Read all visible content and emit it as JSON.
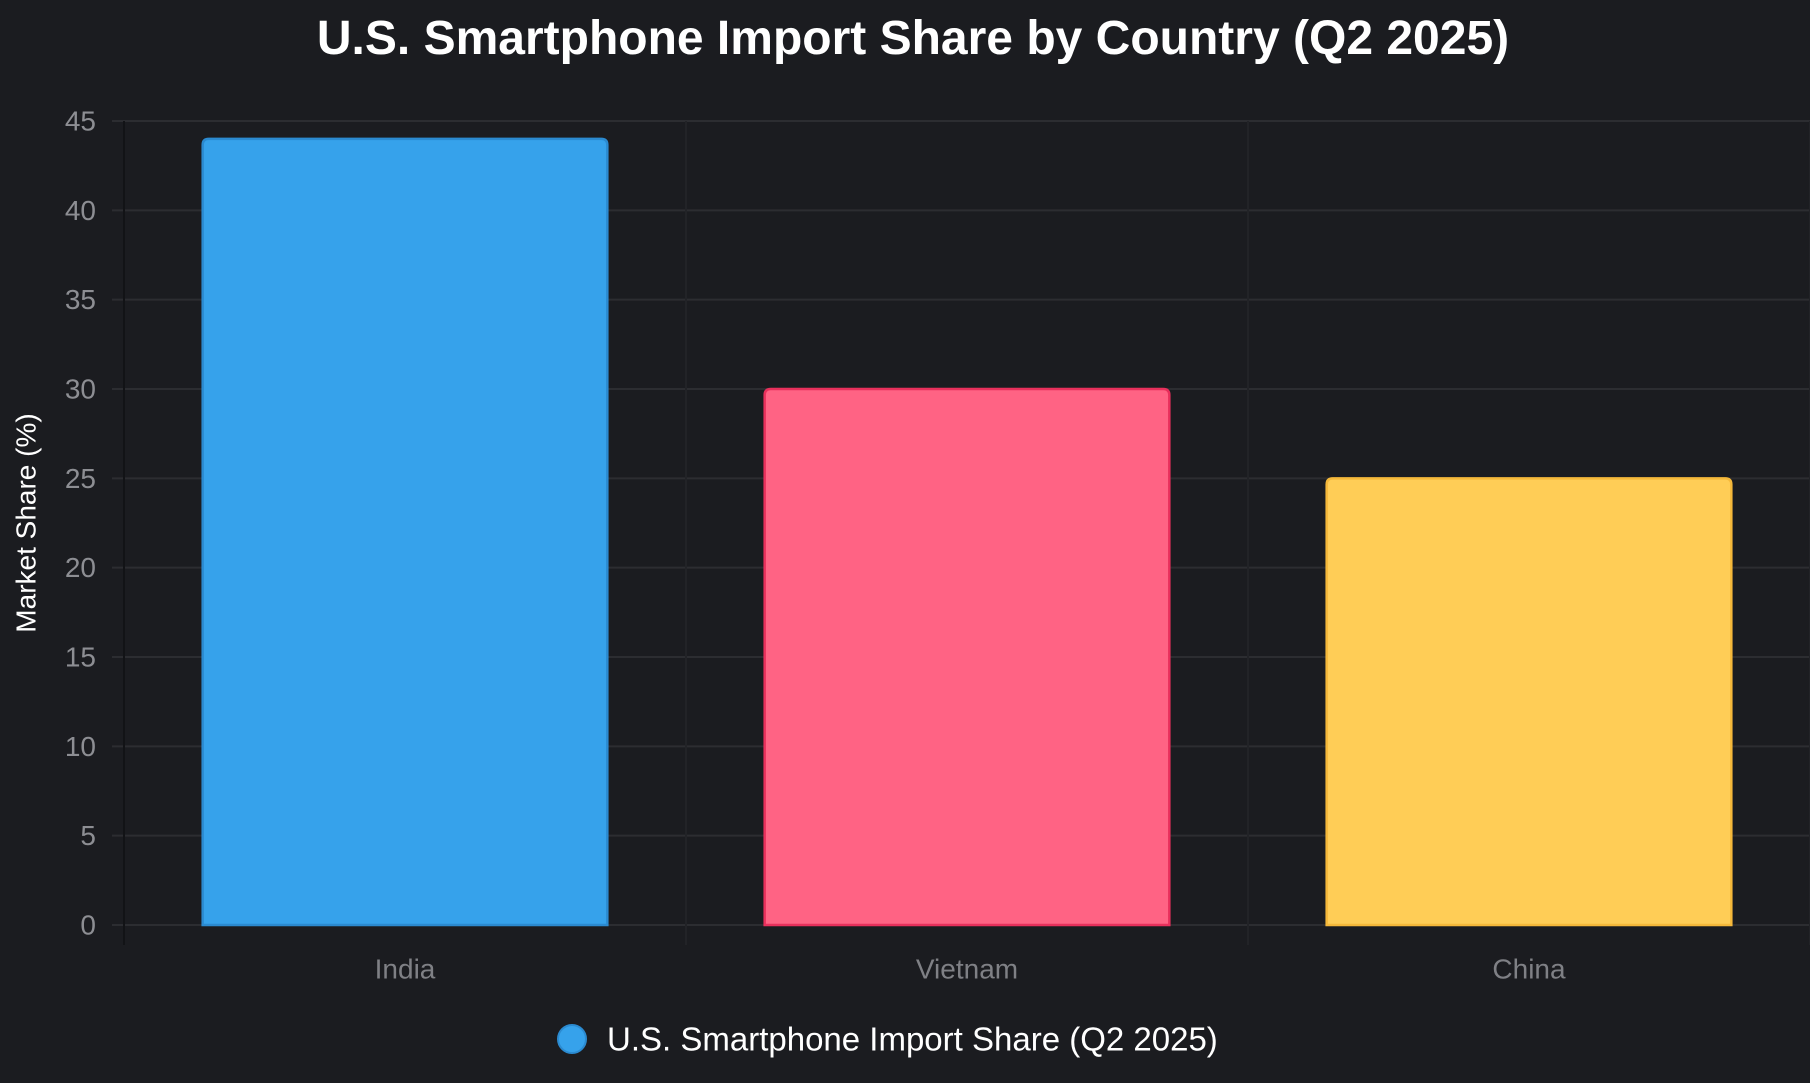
{
  "chart_data": {
    "type": "bar",
    "title": "U.S. Smartphone Import Share by Country (Q2 2025)",
    "xlabel": "",
    "ylabel": "Market Share (%)",
    "categories": [
      "India",
      "Vietnam",
      "China"
    ],
    "series": [
      {
        "name": "U.S. Smartphone Import Share (Q2 2025)",
        "values": [
          44,
          30,
          25
        ],
        "colors": [
          "#36a2eb",
          "#ff6384",
          "#ffcd56"
        ],
        "border_colors": [
          "#2b8ad0",
          "#e8305c",
          "#f5b83a"
        ]
      }
    ],
    "ylim": [
      0,
      45
    ],
    "yticks": [
      0,
      5,
      10,
      15,
      20,
      25,
      30,
      35,
      40,
      45
    ],
    "grid": true,
    "legend": "bottom",
    "legend_color": "#36a2eb",
    "background": "#1b1c20",
    "grid_color": "#2c2d31"
  }
}
